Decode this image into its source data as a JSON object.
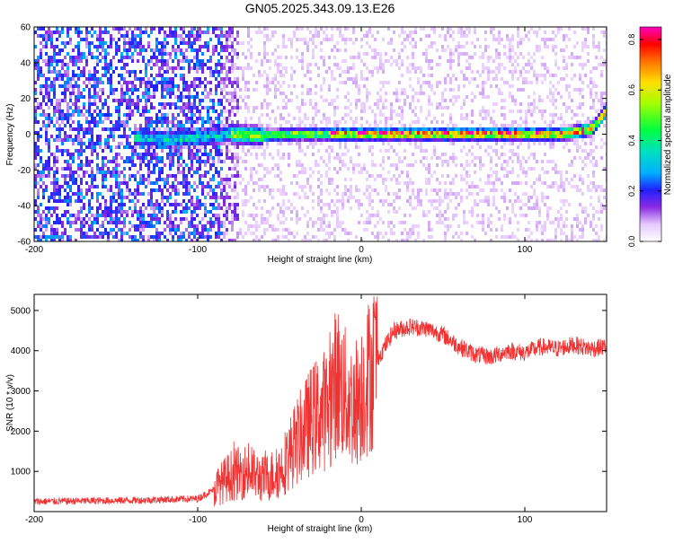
{
  "title": "GN05.2025.343.09.13.E26",
  "chart_data": [
    {
      "type": "heatmap",
      "xlabel": "Height of straight line (km)",
      "ylabel": "Frequency (Hz)",
      "xlim": [
        -200,
        150
      ],
      "ylim": [
        -60,
        60
      ],
      "xticks": [
        -200,
        -100,
        0,
        100
      ],
      "yticks": [
        -60,
        -40,
        -20,
        0,
        20,
        40,
        60
      ],
      "ridge": {
        "description": "dominant frequency ridge (max amplitude) vs height",
        "x": [
          -140,
          -120,
          -100,
          -80,
          -60,
          -40,
          -20,
          0,
          20,
          40,
          60,
          80,
          100,
          120,
          130,
          140,
          145,
          150
        ],
        "y": [
          -2,
          -3,
          -2,
          0,
          -1,
          0,
          0,
          0,
          0,
          0,
          0,
          0,
          0,
          0,
          1,
          3,
          8,
          14
        ]
      },
      "colorbar": {
        "label": "Normalized spectral amplitude",
        "ticks": [
          0.0,
          0.2,
          0.4,
          0.6,
          0.8
        ],
        "range": [
          0,
          0.85
        ]
      }
    },
    {
      "type": "line",
      "xlabel": "Height of straight line (km)",
      "ylabel": "SNR (10 * v/v)",
      "xlim": [
        -200,
        150
      ],
      "ylim": [
        0,
        5400
      ],
      "xticks": [
        -200,
        -100,
        0,
        100
      ],
      "yticks": [
        1000,
        2000,
        3000,
        4000,
        5000
      ],
      "series": [
        {
          "color": "#f03232",
          "x": [
            -200,
            -180,
            -160,
            -140,
            -120,
            -100,
            -90,
            -80,
            -70,
            -60,
            -50,
            -40,
            -30,
            -20,
            -15,
            -10,
            -5,
            0,
            10,
            20,
            30,
            40,
            50,
            60,
            70,
            80,
            90,
            100,
            110,
            120,
            130,
            140,
            150
          ],
          "y": [
            250,
            260,
            270,
            280,
            300,
            320,
            550,
            900,
            1000,
            800,
            1000,
            1700,
            2300,
            2600,
            3300,
            2900,
            2600,
            3000,
            3800,
            4500,
            4600,
            4550,
            4400,
            4100,
            3900,
            3850,
            4000,
            3950,
            4100,
            4050,
            4150,
            4050,
            4100
          ]
        }
      ]
    }
  ]
}
